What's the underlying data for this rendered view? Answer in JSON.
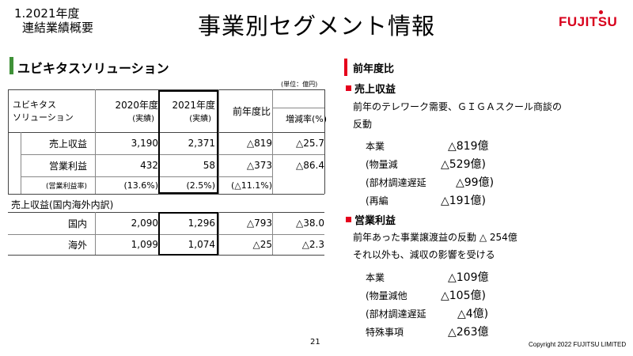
{
  "header": {
    "section_no": "1.2021年度",
    "section_name": "連結業績概要",
    "title": "事業別セグメント情報",
    "logo_text": "FUJITSU"
  },
  "left": {
    "section_title": "ユビキタスソリューション",
    "unit_note": "(単位：億円)",
    "table": {
      "corner_label_1": "ユビキタス",
      "corner_label_2": "ソリューション",
      "col_2020": "2020年度",
      "col_2020_sub": "(実績)",
      "col_2021": "2021年度",
      "col_2021_sub": "(実績)",
      "col_yoy": "前年度比",
      "col_rate": "増減率(%)",
      "rows": [
        {
          "label": "売上収益",
          "v2020": "3,190",
          "v2021": "2,371",
          "yoy": "△819",
          "rate": "△25.7"
        },
        {
          "label": "営業利益",
          "v2020": "432",
          "v2021": "58",
          "yoy": "△373",
          "rate": "△86.4"
        },
        {
          "label": "(営業利益率)",
          "v2020": "(13.6%)",
          "v2021": "(2.5%)",
          "yoy": "(△11.1%)",
          "rate": ""
        }
      ]
    },
    "breakdown_label": "売上収益(国内海外内訳)",
    "breakdown": [
      {
        "label": "国内",
        "v2020": "2,090",
        "v2021": "1,296",
        "yoy": "△793",
        "rate": "△38.0"
      },
      {
        "label": "海外",
        "v2020": "1,099",
        "v2021": "1,074",
        "yoy": "△25",
        "rate": "△2.3"
      }
    ]
  },
  "right": {
    "heading": "前年度比",
    "revenue": {
      "title": "売上収益",
      "desc_1": "前年のテレワーク需要、ＧＩＧＡスクール商談の",
      "desc_2": "反動",
      "items": [
        {
          "label": "本業",
          "value": "△819億"
        },
        {
          "label": "(物量減",
          "value": "△529億)"
        },
        {
          "label": "(部材調達遅延",
          "value": "△99億)"
        },
        {
          "label": "(再編",
          "value": "△191億)"
        }
      ]
    },
    "profit": {
      "title": "営業利益",
      "desc_1": "前年あった事業譲渡益の反動 △ 254億",
      "desc_2": "それ以外も、減収の影響を受ける",
      "items": [
        {
          "label": "本業",
          "value": "△109億"
        },
        {
          "label": "(物量減他",
          "value": "△105億)"
        },
        {
          "label": "(部材調達遅延",
          "value": "△4億)"
        },
        {
          "label": "特殊事項",
          "value": "△263億"
        }
      ]
    }
  },
  "footer": {
    "page": "21",
    "copyright": "Copyright 2022 FUJITSU LIMITED"
  },
  "colors": {
    "accent_green": "#3f9138",
    "accent_red": "#e5001c",
    "logo_red": "#d8001c"
  }
}
